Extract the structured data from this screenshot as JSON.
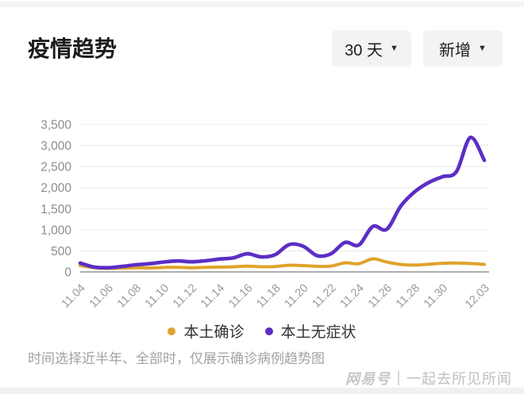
{
  "header": {
    "title": "疫情趋势",
    "time_range_dropdown": "30 天",
    "metric_dropdown": "新增"
  },
  "chart_data": {
    "type": "line",
    "title": "疫情趋势",
    "x": [
      "11.04",
      "11.05",
      "11.06",
      "11.07",
      "11.08",
      "11.09",
      "11.10",
      "11.11",
      "11.12",
      "11.13",
      "11.14",
      "11.15",
      "11.16",
      "11.17",
      "11.18",
      "11.19",
      "11.20",
      "11.21",
      "11.22",
      "11.23",
      "11.24",
      "11.25",
      "11.26",
      "11.27",
      "11.28",
      "11.29",
      "11.30",
      "12.01",
      "12.02",
      "12.03"
    ],
    "x_tick_labels": [
      "11.04",
      "11.06",
      "11.08",
      "11.10",
      "11.12",
      "11.14",
      "11.16",
      "11.18",
      "11.20",
      "11.22",
      "11.24",
      "11.26",
      "11.28",
      "11.30",
      "12.03"
    ],
    "series": [
      {
        "name": "本土确诊",
        "color": "#dfa32b",
        "values": [
          150,
          100,
          85,
          90,
          100,
          95,
          105,
          110,
          100,
          108,
          115,
          122,
          138,
          122,
          128,
          158,
          150,
          132,
          138,
          215,
          195,
          310,
          235,
          178,
          162,
          182,
          205,
          212,
          200,
          178
        ]
      },
      {
        "name": "本土无症状",
        "color": "#5c2ec5",
        "values": [
          210,
          115,
          100,
          130,
          170,
          195,
          235,
          260,
          240,
          265,
          305,
          335,
          430,
          355,
          410,
          650,
          610,
          385,
          430,
          700,
          640,
          1080,
          1010,
          1560,
          1900,
          2120,
          2260,
          2380,
          3190,
          2650
        ]
      }
    ],
    "ylim": [
      0,
      3500
    ],
    "y_ticks": [
      0,
      500,
      1000,
      1500,
      2000,
      2500,
      3000,
      3500
    ],
    "y_tick_labels": [
      "0",
      "500",
      "1,000",
      "1,500",
      "2,000",
      "2,500",
      "3,000",
      "3,500"
    ],
    "grid": true,
    "legend_position": "bottom"
  },
  "footnote": "时间选择近半年、全部时，仅展示确诊病例趋势图",
  "watermark": {
    "brand": "网易号",
    "account": "一起去所见所闻"
  }
}
